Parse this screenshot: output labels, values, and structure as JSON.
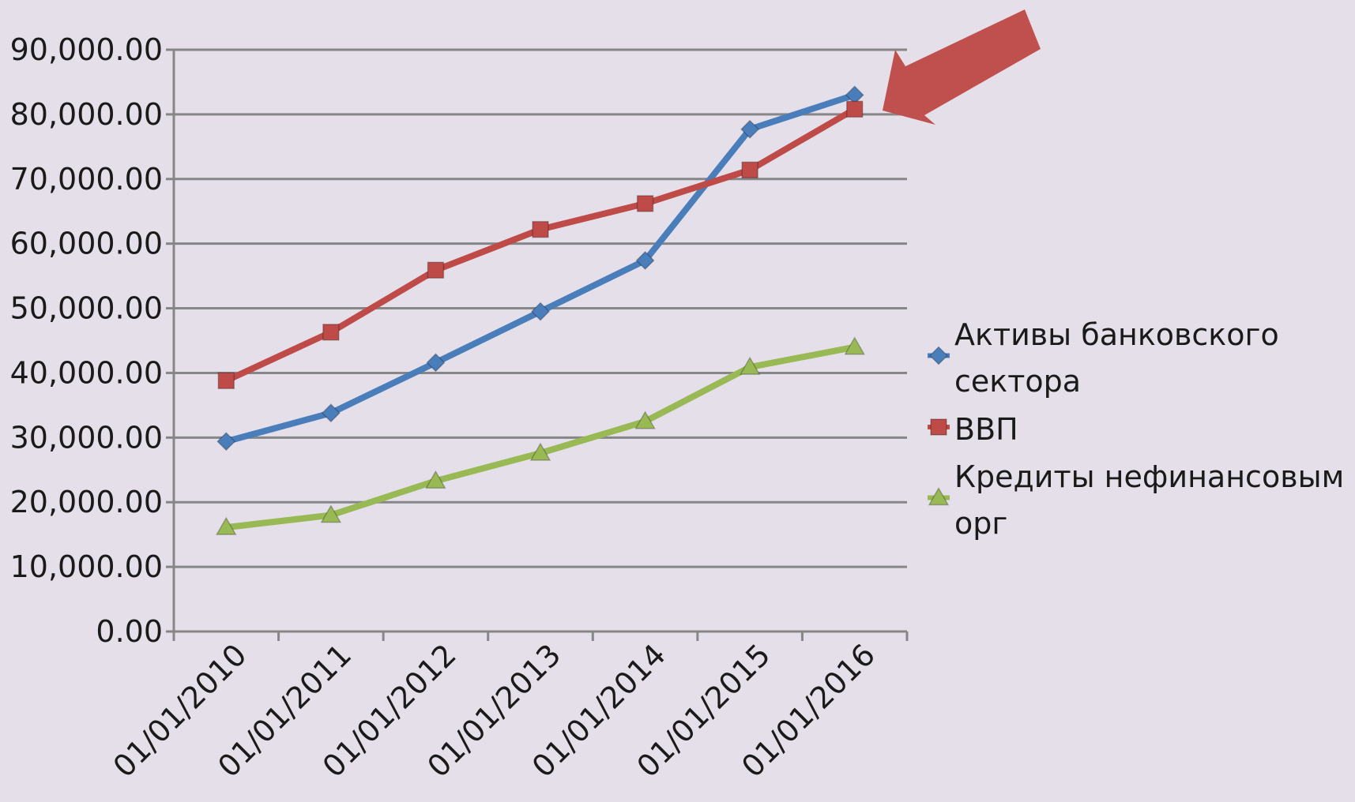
{
  "chart_data": {
    "type": "line",
    "title": "",
    "xlabel": "",
    "ylabel": "",
    "categories": [
      "01/01/2010",
      "01/01/2011",
      "01/01/2012",
      "01/01/2013",
      "01/01/2014",
      "01/01/2015",
      "01/01/2016"
    ],
    "ylim": [
      0,
      90000
    ],
    "y_ticks": [
      "0.00",
      "10,000.00",
      "20,000.00",
      "30,000.00",
      "40,000.00",
      "50,000.00",
      "60,000.00",
      "70,000.00",
      "80,000.00",
      "90,000.00"
    ],
    "grid": true,
    "legend_position": "right",
    "series": [
      {
        "name_lines": [
          "Активы банковского",
          "сектора"
        ],
        "color": "#4a7ebb",
        "marker": "diamond",
        "values": [
          29400,
          33800,
          41600,
          49500,
          57400,
          77700,
          83000
        ]
      },
      {
        "name_lines": [
          "ВВП"
        ],
        "color": "#be4b48",
        "marker": "square",
        "values": [
          38800,
          46300,
          55900,
          62200,
          66200,
          71400,
          80800
        ]
      },
      {
        "name_lines": [
          "Кредиты нефинансовым",
          "орг"
        ],
        "color": "#98b954",
        "marker": "triangle",
        "values": [
          16100,
          18000,
          23300,
          27600,
          32500,
          40900,
          44000
        ]
      }
    ],
    "annotation_arrow_color": "#c0504d"
  }
}
